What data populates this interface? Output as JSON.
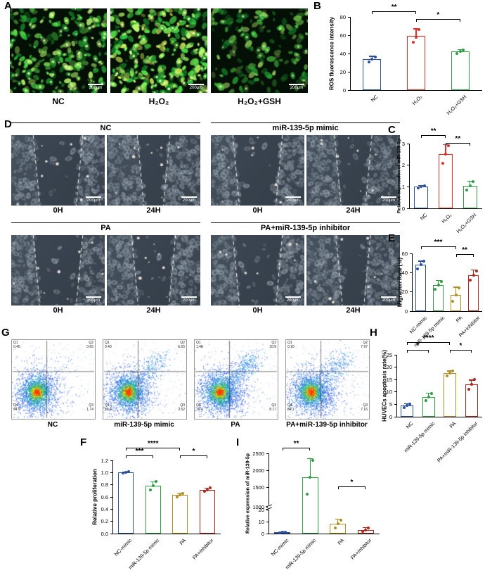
{
  "figure": {
    "scale_bar": "200μm",
    "panels": {
      "A": {
        "label": "A",
        "images": [
          {
            "name": "NC",
            "density": 240,
            "brightness": 0.9,
            "seed": 11
          },
          {
            "name": "H₂O₂",
            "density": 330,
            "brightness": 1.05,
            "seed": 22
          },
          {
            "name": "H₂O₂+GSH",
            "density": 170,
            "brightness": 0.7,
            "seed": 33
          }
        ]
      },
      "B": {
        "label": "B"
      },
      "C": {
        "label": "C"
      },
      "D": {
        "label": "D",
        "time_labels": [
          "0H",
          "24H"
        ],
        "groups": [
          {
            "name": "NC",
            "gaps": [
              0.46,
              0.28
            ],
            "seeds": [
              41,
              42
            ]
          },
          {
            "name": "miR-139-5p mimic",
            "gaps": [
              0.46,
              0.33
            ],
            "seeds": [
              43,
              44
            ]
          },
          {
            "name": "PA",
            "gaps": [
              0.46,
              0.4
            ],
            "seeds": [
              45,
              46
            ]
          },
          {
            "name": "PA+miR-139-5p inhibitor",
            "gaps": [
              0.46,
              0.3
            ],
            "seeds": [
              47,
              48
            ]
          }
        ]
      },
      "E": {
        "label": "E"
      },
      "F": {
        "label": "F"
      },
      "G": {
        "label": "G",
        "plots": [
          {
            "name": "NC",
            "seed": 71,
            "apoptosis": 0.65,
            "late": 1.74,
            "q": [
              [
                "Q1",
                "0.45"
              ],
              [
                "Q2",
                "0.65"
              ],
              [
                "Q3",
                "1.74"
              ],
              [
                "Q4",
                "94.9"
              ]
            ]
          },
          {
            "name": "miR-139-5p mimic",
            "seed": 72,
            "apoptosis": 6.65,
            "late": 3.52,
            "q": [
              [
                "Q1",
                "0.40"
              ],
              [
                "Q2",
                "6.65"
              ],
              [
                "Q3",
                "3.52"
              ],
              [
                "Q4",
                "89.4"
              ]
            ]
          },
          {
            "name": "PA",
            "seed": 73,
            "apoptosis": 10.9,
            "late": 8.17,
            "q": [
              [
                "Q1",
                "1.48"
              ],
              [
                "Q2",
                "10.9"
              ],
              [
                "Q3",
                "8.17"
              ],
              [
                "Q4",
                "79.4"
              ]
            ]
          },
          {
            "name": "PA+miR-139-5p inhibitor",
            "seed": 74,
            "apoptosis": 7.97,
            "late": 7.16,
            "q": [
              [
                "Q1",
                "0.16"
              ],
              [
                "Q2",
                "7.97"
              ],
              [
                "Q3",
                "7.16"
              ],
              [
                "Q4",
                "84.7"
              ]
            ]
          }
        ]
      },
      "H": {
        "label": "H"
      },
      "I": {
        "label": "I"
      }
    }
  },
  "chart_data": [
    {
      "id": "B",
      "type": "bar",
      "ylabel": "ROS fluorescence intensity",
      "categories": [
        "NC",
        "H₂O₂",
        "H₂O₂+GSH"
      ],
      "values": [
        34,
        59,
        42
      ],
      "errors": [
        3,
        8,
        2
      ],
      "points": [
        [
          31,
          34,
          36
        ],
        [
          52,
          58,
          66
        ],
        [
          40,
          42,
          44
        ]
      ],
      "colors": [
        "#2c4f9e",
        "#e03127",
        "#2f9e44"
      ],
      "ylim": [
        0,
        80
      ],
      "yticks": [
        0,
        20,
        40,
        60,
        80
      ],
      "significance": [
        {
          "from": 0,
          "to": 1,
          "label": "**",
          "row": 0
        },
        {
          "from": 1,
          "to": 2,
          "label": "*",
          "row": 1
        }
      ]
    },
    {
      "id": "C",
      "type": "bar",
      "ylabel": "Relative expression of miR-139-5p",
      "categories": [
        "NC",
        "H₂O₂",
        "H₂O₂+GSH"
      ],
      "values": [
        1.0,
        2.5,
        1.05
      ],
      "errors": [
        0.05,
        0.45,
        0.22
      ],
      "points": [
        [
          0.96,
          1.0,
          1.04
        ],
        [
          2.1,
          2.5,
          2.9
        ],
        [
          0.85,
          1.05,
          1.25
        ]
      ],
      "colors": [
        "#2c4f9e",
        "#e03127",
        "#2f9e44"
      ],
      "ylim": [
        0,
        3
      ],
      "yticks": [
        0,
        1,
        2,
        3
      ],
      "significance": [
        {
          "from": 0,
          "to": 1,
          "label": "**",
          "row": 0
        },
        {
          "from": 1,
          "to": 2,
          "label": "**",
          "row": 1
        }
      ]
    },
    {
      "id": "E",
      "type": "bar",
      "ylabel": "Migration Rate (%)",
      "categories": [
        "NC-mimic",
        "miR-139-5p mimic",
        "PA",
        "PA+inhibitor"
      ],
      "values": [
        48,
        27,
        17,
        37
      ],
      "errors": [
        4,
        5,
        8,
        6
      ],
      "points": [
        [
          44,
          48,
          52
        ],
        [
          23,
          27,
          31
        ],
        [
          10,
          17,
          24
        ],
        [
          32,
          37,
          42
        ]
      ],
      "colors": [
        "#2c4f9e",
        "#2f9e44",
        "#b08f26",
        "#b3261e"
      ],
      "ylim": [
        0,
        60
      ],
      "yticks": [
        0,
        20,
        40,
        60
      ],
      "significance": [
        {
          "from": 0,
          "to": 2,
          "label": "***",
          "row": 0
        },
        {
          "from": 2,
          "to": 3,
          "label": "**",
          "row": 1
        }
      ]
    },
    {
      "id": "F",
      "type": "bar",
      "ylabel": "Relative proliferation",
      "categories": [
        "NC-mimic",
        "miR-139-5p mimic",
        "PA",
        "PA+inhibitor"
      ],
      "values": [
        1.0,
        0.78,
        0.63,
        0.72
      ],
      "errors": [
        0.01,
        0.07,
        0.03,
        0.03
      ],
      "points": [
        [
          0.99,
          1.0,
          1.01
        ],
        [
          0.71,
          0.78,
          0.85
        ],
        [
          0.6,
          0.63,
          0.66
        ],
        [
          0.69,
          0.72,
          0.75
        ]
      ],
      "colors": [
        "#2c4f9e",
        "#2f9e44",
        "#b08f26",
        "#b3261e"
      ],
      "ylim": [
        0,
        1.2
      ],
      "yticks": [
        0,
        0.2,
        0.4,
        0.6,
        0.8,
        1.0,
        1.2
      ],
      "ytick_decimals": 1,
      "significance": [
        {
          "from": 0,
          "to": 2,
          "label": "****",
          "row": 0
        },
        {
          "from": 0,
          "to": 1,
          "label": "***",
          "row": 1
        },
        {
          "from": 2,
          "to": 3,
          "label": "*",
          "row": 1
        }
      ]
    },
    {
      "id": "H",
      "type": "bar",
      "ylabel": "HUVECs apoptosis rate(%)",
      "categories": [
        "NC",
        "miR-139-5p mimic",
        "PA",
        "PA+miR-139-5p inhibitor"
      ],
      "values": [
        4.5,
        8,
        17.5,
        13
      ],
      "errors": [
        0.8,
        1.5,
        1,
        1.8
      ],
      "points": [
        [
          3.8,
          4.5,
          5.2
        ],
        [
          6.5,
          8,
          9.5
        ],
        [
          16.5,
          17.5,
          18.5
        ],
        [
          11,
          13,
          15
        ]
      ],
      "colors": [
        "#2c4f9e",
        "#2f9e44",
        "#b08f26",
        "#b3261e"
      ],
      "ylim": [
        0,
        25
      ],
      "yticks": [
        0,
        5,
        10,
        15,
        20,
        25
      ],
      "significance": [
        {
          "from": 0,
          "to": 2,
          "label": "****",
          "row": 0
        },
        {
          "from": 0,
          "to": 1,
          "label": "*",
          "row": 1
        },
        {
          "from": 2,
          "to": 3,
          "label": "*",
          "row": 1
        }
      ]
    },
    {
      "id": "I",
      "type": "bar",
      "ylabel": "Relative expression of miR-139-5p",
      "categories": [
        "NC-mimic",
        "miR-139-5p mimic",
        "PA",
        "PA+inhibitor"
      ],
      "values": [
        1,
        1800,
        8,
        3
      ],
      "errors": [
        0.4,
        550,
        4,
        2
      ],
      "points": [
        [
          0.8,
          1,
          1.2
        ],
        [
          1300,
          1800,
          2300
        ],
        [
          5,
          8,
          11
        ],
        [
          1.5,
          3,
          4.5
        ]
      ],
      "colors": [
        "#2c4f9e",
        "#2f9e44",
        "#b08f26",
        "#b3261e"
      ],
      "axis_break": {
        "lower": [
          0,
          20
        ],
        "upper": [
          1000,
          2500
        ],
        "lower_ticks": [
          0,
          10,
          20
        ],
        "upper_ticks": [
          1000,
          1500,
          2000,
          2500
        ],
        "lower_frac": 0.32
      },
      "significance": [
        {
          "from": 0,
          "to": 1,
          "label": "**",
          "row": 0
        },
        {
          "from": 2,
          "to": 3,
          "label": "*",
          "row": 5
        }
      ]
    }
  ]
}
